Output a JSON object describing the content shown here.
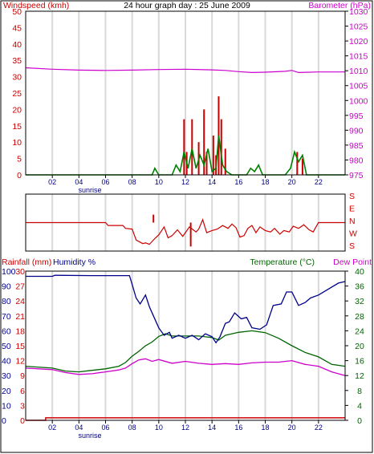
{
  "colors": {
    "wind": "#cc0000",
    "gust": "#008000",
    "wind_dark": "#0000cc",
    "baro": "#cc00cc",
    "direction": "#cc0000",
    "rain": "#cc0000",
    "humidity": "#00008b",
    "temperature": "#006400",
    "dewpoint": "#cc00cc",
    "grid": "#d9d9d9",
    "text_dark": "#000080"
  },
  "chart_data": [
    {
      "type": "line",
      "title": "24 hour graph day : 25 June 2009",
      "ylabel": "Windspeed (kmh)",
      "y2label": "Barometer (hPa)",
      "ylim": [
        0,
        50
      ],
      "y2lim": [
        975,
        1030
      ],
      "yticks": [
        0,
        5,
        10,
        15,
        20,
        25,
        30,
        35,
        40,
        45,
        50
      ],
      "y2ticks": [
        975,
        980,
        985,
        990,
        995,
        1000,
        1005,
        1010,
        1015,
        1020,
        1025,
        1030
      ],
      "xlim": [
        0,
        24
      ],
      "xtick_labels": [
        "02",
        "04",
        "06",
        "08",
        "10",
        "12",
        "14",
        "16",
        "18",
        "20",
        "22"
      ],
      "x_annotation": "sunrise",
      "grid": true,
      "series": [
        {
          "name": "Barometer",
          "axis": "right",
          "points": [
            [
              0,
              1011
            ],
            [
              2,
              1010.5
            ],
            [
              4,
              1010.2
            ],
            [
              6,
              1010.1
            ],
            [
              8,
              1010.2
            ],
            [
              10,
              1010.4
            ],
            [
              12,
              1010.5
            ],
            [
              14,
              1010.3
            ],
            [
              15,
              1010.1
            ],
            [
              16,
              1009.7
            ],
            [
              17,
              1009.4
            ],
            [
              18,
              1009.5
            ],
            [
              19.5,
              1009.8
            ],
            [
              20,
              1010.1
            ],
            [
              20.5,
              1009.4
            ],
            [
              22,
              1009.6
            ],
            [
              24,
              1009.6
            ]
          ]
        },
        {
          "name": "Gust",
          "axis": "left",
          "bars": [
            [
              11.9,
              17
            ],
            [
              12.1,
              7
            ],
            [
              12.5,
              17
            ],
            [
              13.0,
              10
            ],
            [
              13.4,
              20
            ],
            [
              13.6,
              7
            ],
            [
              14.1,
              12
            ],
            [
              14.3,
              6
            ],
            [
              14.5,
              24
            ],
            [
              14.7,
              17
            ],
            [
              15.0,
              8
            ],
            [
              20.4,
              7
            ],
            [
              20.8,
              5
            ]
          ]
        },
        {
          "name": "Windspeed",
          "axis": "left",
          "points": [
            [
              0,
              0
            ],
            [
              9.5,
              0
            ],
            [
              9.7,
              2
            ],
            [
              10,
              0
            ],
            [
              11,
              0
            ],
            [
              11.3,
              3
            ],
            [
              11.6,
              1
            ],
            [
              11.9,
              7
            ],
            [
              12.2,
              2
            ],
            [
              12.5,
              8
            ],
            [
              12.8,
              2
            ],
            [
              13.1,
              6
            ],
            [
              13.4,
              3
            ],
            [
              13.7,
              8
            ],
            [
              14.0,
              1
            ],
            [
              14.3,
              2
            ],
            [
              14.5,
              12
            ],
            [
              14.8,
              3
            ],
            [
              15.1,
              1
            ],
            [
              15.5,
              0
            ],
            [
              16.6,
              0
            ],
            [
              16.9,
              2
            ],
            [
              17.2,
              1
            ],
            [
              17.5,
              3
            ],
            [
              17.8,
              0
            ],
            [
              18.2,
              0
            ],
            [
              19.5,
              0
            ],
            [
              19.9,
              2
            ],
            [
              20.2,
              7
            ],
            [
              20.5,
              4
            ],
            [
              20.8,
              6
            ],
            [
              21.1,
              0
            ],
            [
              24,
              0
            ]
          ]
        }
      ]
    },
    {
      "type": "line",
      "ylabels_right": [
        "S",
        "E",
        "N",
        "W",
        "S"
      ],
      "xlim": [
        0,
        24
      ],
      "series": [
        {
          "name": "Wind direction",
          "points": [
            [
              0,
              180
            ],
            [
              6,
              180
            ],
            [
              6.2,
              160
            ],
            [
              7.3,
              160
            ],
            [
              7.5,
              140
            ],
            [
              8,
              135
            ],
            [
              8.3,
              60
            ],
            [
              8.8,
              35
            ],
            [
              9,
              40
            ],
            [
              9.3,
              30
            ],
            [
              9.7,
              70
            ],
            [
              10,
              95
            ],
            [
              10.4,
              150
            ],
            [
              10.7,
              75
            ],
            [
              11,
              90
            ],
            [
              11.4,
              130
            ],
            [
              11.8,
              85
            ],
            [
              12.3,
              150
            ],
            [
              12.8,
              115
            ],
            [
              13,
              135
            ],
            [
              13.3,
              200
            ],
            [
              13.6,
              110
            ],
            [
              14,
              125
            ],
            [
              14.4,
              135
            ],
            [
              14.8,
              160
            ],
            [
              15.2,
              140
            ],
            [
              15.5,
              170
            ],
            [
              15.8,
              145
            ],
            [
              16.1,
              80
            ],
            [
              16.4,
              90
            ],
            [
              16.7,
              140
            ],
            [
              17,
              160
            ],
            [
              17.3,
              110
            ],
            [
              17.6,
              150
            ],
            [
              18,
              125
            ],
            [
              18.4,
              115
            ],
            [
              18.7,
              140
            ],
            [
              19.1,
              100
            ],
            [
              19.4,
              125
            ],
            [
              19.8,
              115
            ],
            [
              20.1,
              155
            ],
            [
              20.5,
              140
            ],
            [
              20.9,
              165
            ],
            [
              21.3,
              130
            ],
            [
              21.6,
              115
            ],
            [
              22,
              180
            ],
            [
              24,
              180
            ]
          ]
        },
        {
          "name": "Direction spikes",
          "bars": [
            [
              9.6,
              235
            ],
            [
              12.4,
              15
            ]
          ]
        }
      ]
    },
    {
      "type": "line",
      "ylabel": "Rainfall (mm)",
      "ylabel2": "Humidity %",
      "y2label": "Temperature (°C)",
      "y3label": "Dew Point",
      "ylim": [
        0,
        30
      ],
      "humidity_lim": [
        0,
        100
      ],
      "temp_lim": [
        0,
        40
      ],
      "rain_ticks": [
        0,
        3,
        6,
        9,
        12,
        15,
        18,
        21,
        24,
        27,
        30
      ],
      "humidity_ticks": [
        0,
        10,
        20,
        30,
        40,
        50,
        60,
        70,
        80,
        90,
        100
      ],
      "temp_ticks": [
        0,
        4,
        8,
        12,
        16,
        20,
        24,
        28,
        32,
        36,
        40
      ],
      "xlim": [
        0,
        24
      ],
      "xtick_labels": [
        "02",
        "04",
        "06",
        "08",
        "10",
        "12",
        "14",
        "16",
        "18",
        "20",
        "22"
      ],
      "x_annotation": "sunrise",
      "grid": true,
      "series": [
        {
          "name": "Humidity",
          "axis": "humidity",
          "points": [
            [
              0,
              96.5
            ],
            [
              2,
              96.5
            ],
            [
              2.2,
              97.2
            ],
            [
              5,
              97
            ],
            [
              7.2,
              97
            ],
            [
              7.8,
              97
            ],
            [
              8,
              91
            ],
            [
              8.3,
              82
            ],
            [
              8.6,
              78
            ],
            [
              9,
              84
            ],
            [
              9.3,
              76
            ],
            [
              9.6,
              70
            ],
            [
              10,
              62
            ],
            [
              10.4,
              57
            ],
            [
              10.8,
              59
            ],
            [
              11,
              55
            ],
            [
              11.5,
              57
            ],
            [
              12,
              55
            ],
            [
              12.5,
              57
            ],
            [
              13,
              54
            ],
            [
              13.5,
              58
            ],
            [
              14,
              56
            ],
            [
              14.3,
              52
            ],
            [
              14.6,
              56
            ],
            [
              15,
              65
            ],
            [
              15.3,
              66
            ],
            [
              15.7,
              72
            ],
            [
              16.2,
              68
            ],
            [
              16.6,
              69
            ],
            [
              17,
              62
            ],
            [
              17.6,
              61
            ],
            [
              18.1,
              64
            ],
            [
              18.6,
              77
            ],
            [
              19.2,
              78
            ],
            [
              19.6,
              86
            ],
            [
              20,
              86
            ],
            [
              20.5,
              77
            ],
            [
              21,
              79
            ],
            [
              21.4,
              82
            ],
            [
              22,
              84
            ],
            [
              23.5,
              92
            ],
            [
              24,
              93
            ]
          ]
        },
        {
          "name": "Temperature",
          "axis": "temp",
          "points": [
            [
              0,
              14.5
            ],
            [
              2,
              14
            ],
            [
              3,
              13.2
            ],
            [
              4,
              13
            ],
            [
              5,
              13.4
            ],
            [
              6,
              13.8
            ],
            [
              7,
              14.5
            ],
            [
              7.5,
              15.5
            ],
            [
              8,
              17.2
            ],
            [
              8.5,
              18.5
            ],
            [
              9,
              20
            ],
            [
              9.5,
              21
            ],
            [
              10,
              22.5
            ],
            [
              10.5,
              23.2
            ],
            [
              11,
              22.6
            ],
            [
              12,
              22.6
            ],
            [
              13,
              22.6
            ],
            [
              14,
              22.2
            ],
            [
              14.5,
              21.5
            ],
            [
              15,
              22.8
            ],
            [
              16,
              23.6
            ],
            [
              17,
              24
            ],
            [
              18,
              23.5
            ],
            [
              19,
              22
            ],
            [
              20,
              20
            ],
            [
              21,
              18.2
            ],
            [
              22,
              17
            ],
            [
              23,
              15
            ],
            [
              24,
              14.5
            ]
          ]
        },
        {
          "name": "Dew Point",
          "axis": "temp",
          "points": [
            [
              0,
              14
            ],
            [
              2,
              13.6
            ],
            [
              3,
              12.8
            ],
            [
              4,
              12.3
            ],
            [
              5,
              12.5
            ],
            [
              6,
              13
            ],
            [
              7,
              13.5
            ],
            [
              7.5,
              14
            ],
            [
              8,
              15.2
            ],
            [
              8.5,
              16.2
            ],
            [
              9,
              16.5
            ],
            [
              9.5,
              15.8
            ],
            [
              10,
              16.3
            ],
            [
              11,
              15.3
            ],
            [
              12,
              15.8
            ],
            [
              13,
              15.3
            ],
            [
              14,
              15
            ],
            [
              15,
              15.2
            ],
            [
              16,
              15
            ],
            [
              17,
              15.4
            ],
            [
              18,
              15.6
            ],
            [
              19,
              15.6
            ],
            [
              20,
              16
            ],
            [
              21,
              15
            ],
            [
              22,
              14.5
            ],
            [
              23,
              13
            ],
            [
              24,
              12
            ]
          ]
        },
        {
          "name": "Rainfall",
          "axis": "rain",
          "points": [
            [
              0,
              0
            ],
            [
              1.5,
              0
            ],
            [
              1.5,
              0.5
            ],
            [
              24,
              0.5
            ]
          ]
        }
      ]
    }
  ]
}
